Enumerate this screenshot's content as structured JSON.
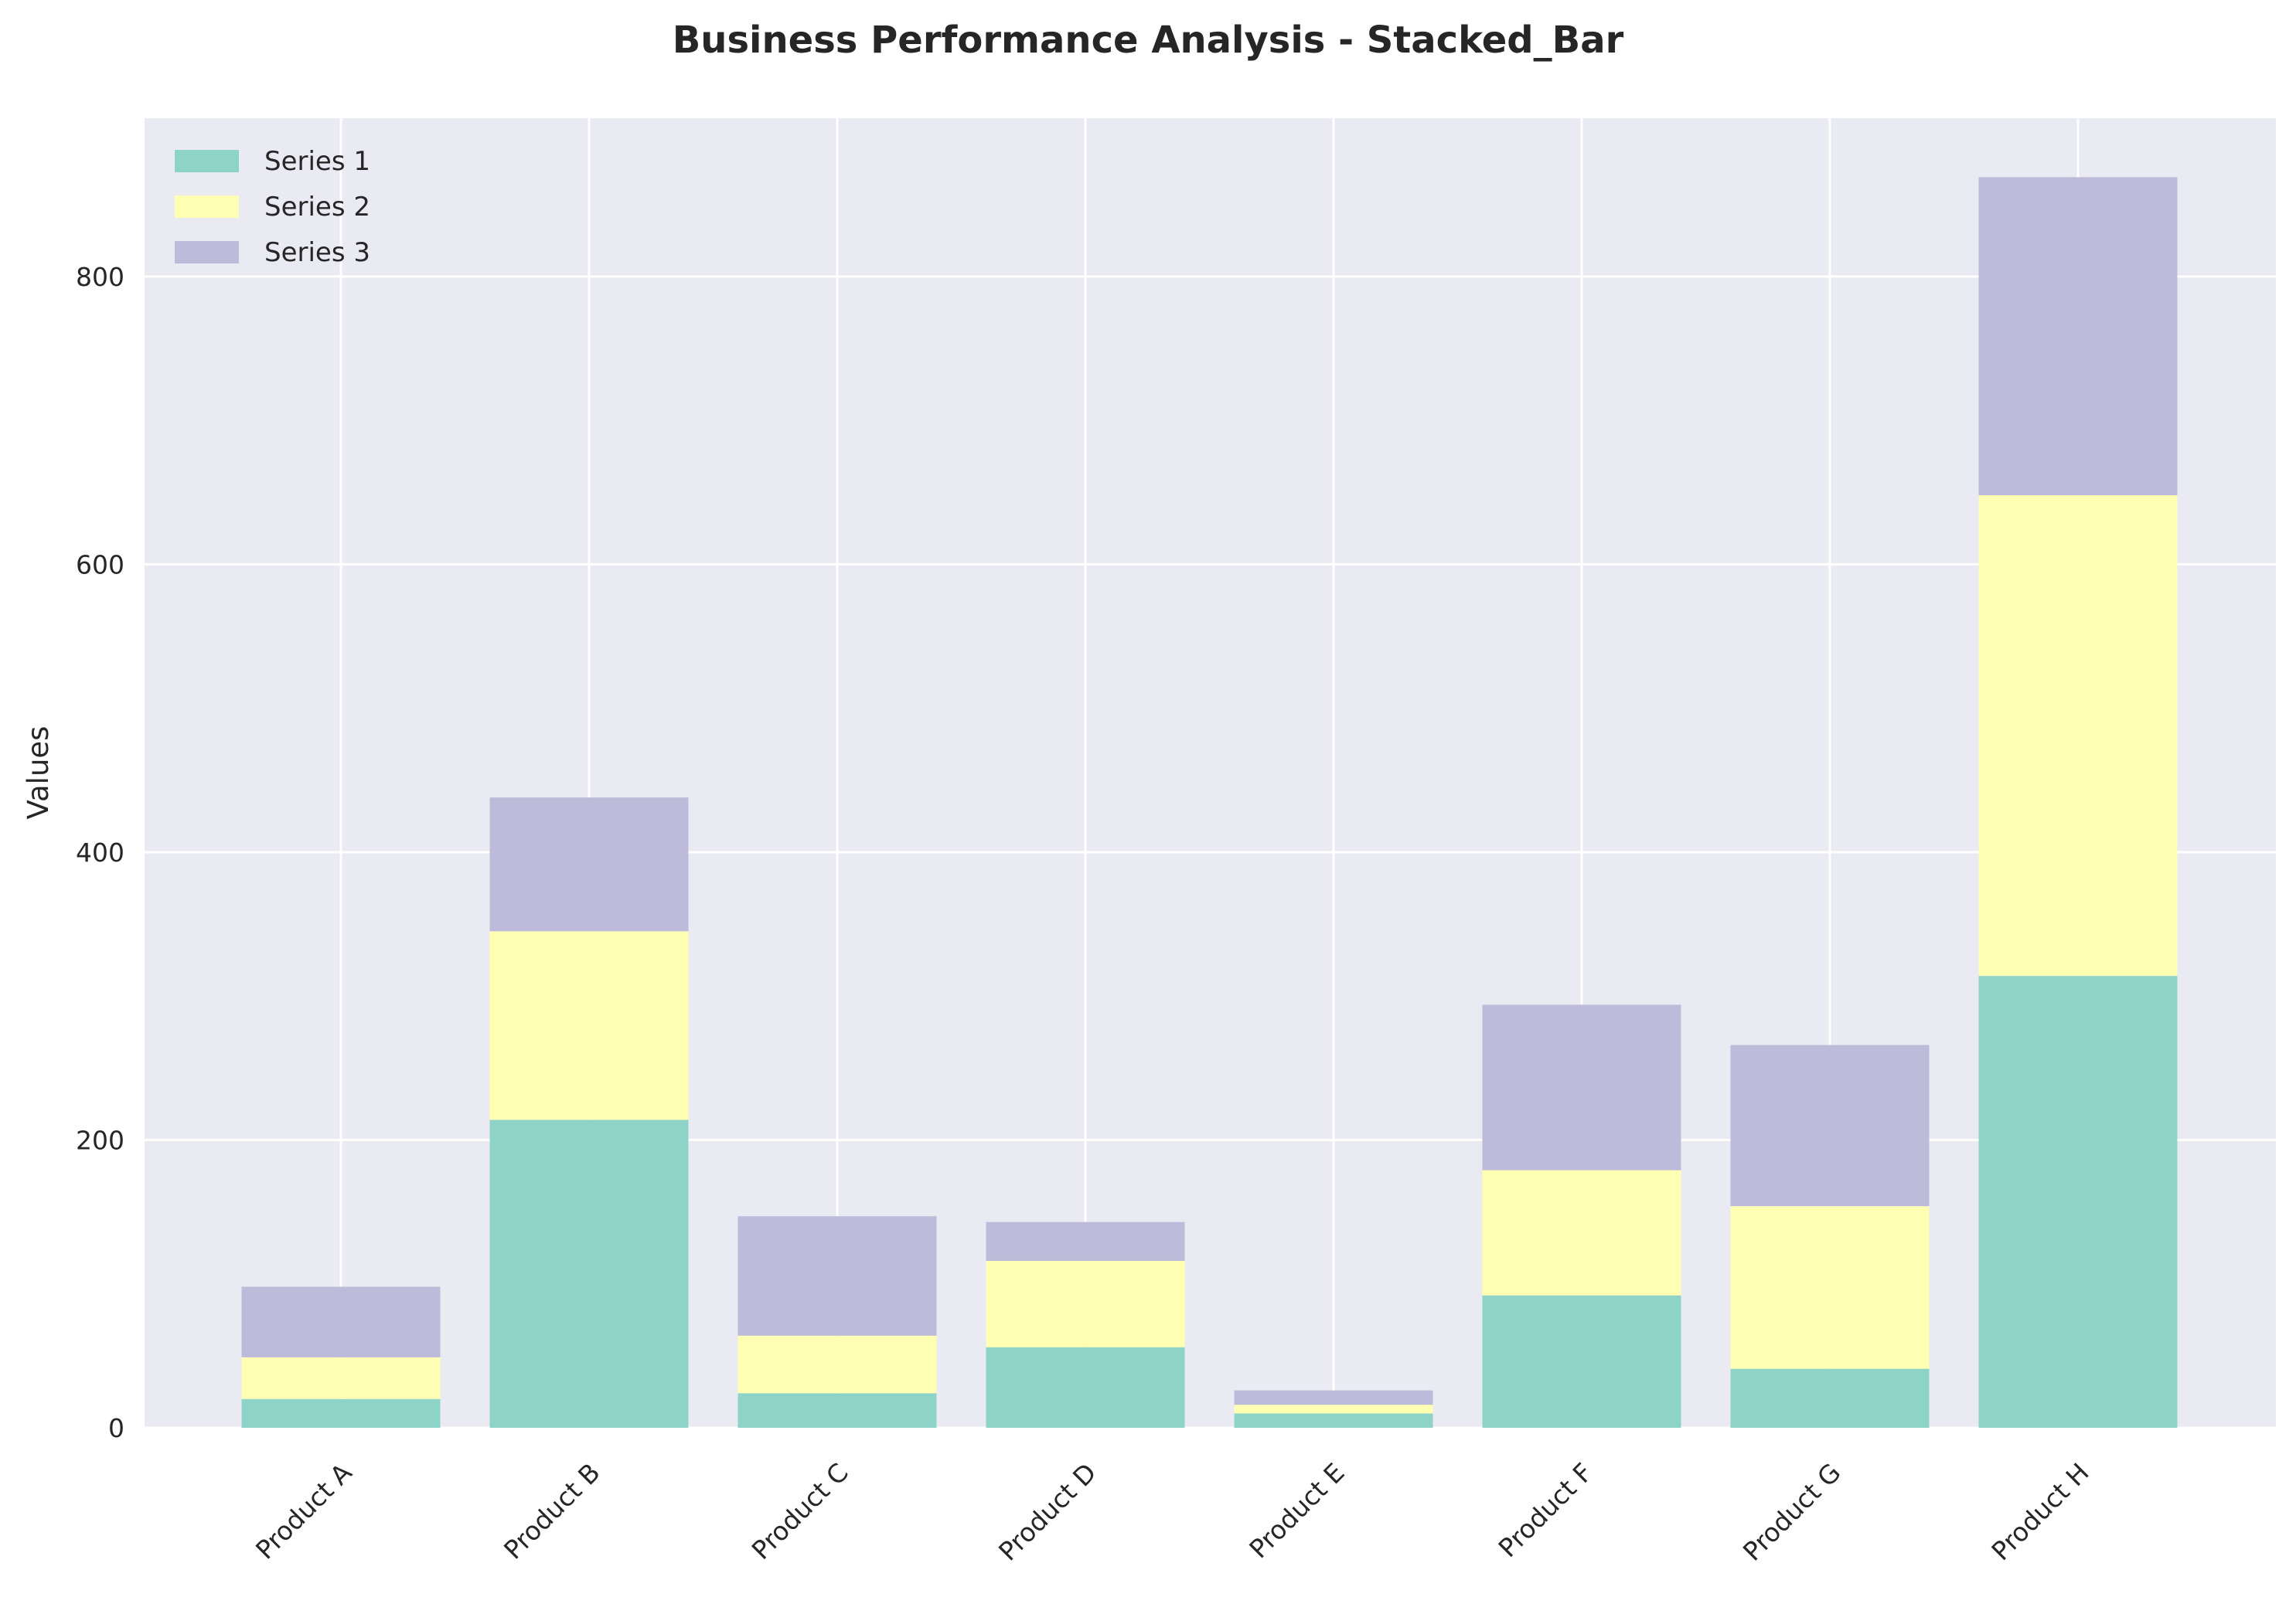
{
  "chart_data": {
    "type": "bar",
    "stacked": true,
    "title": "Business Performance Analysis - Stacked_Bar",
    "xlabel": "",
    "ylabel": "Values",
    "ylim": [
      0,
      910
    ],
    "yticks": [
      0,
      200,
      400,
      600,
      800
    ],
    "grid": true,
    "legend_position": "top-left",
    "categories": [
      "Product A",
      "Product B",
      "Product C",
      "Product D",
      "Product E",
      "Product F",
      "Product G",
      "Product H"
    ],
    "series": [
      {
        "name": "Series 1",
        "color": "#8dd3c7",
        "values": [
          20,
          214,
          24,
          56,
          10,
          92,
          41,
          314
        ]
      },
      {
        "name": "Series 2",
        "color": "#ffffb3",
        "values": [
          29,
          131,
          40,
          60,
          6,
          87,
          113,
          334
        ]
      },
      {
        "name": "Series 3",
        "color": "#bebada",
        "values": [
          49,
          93,
          83,
          27,
          10,
          115,
          112,
          221
        ]
      }
    ]
  }
}
